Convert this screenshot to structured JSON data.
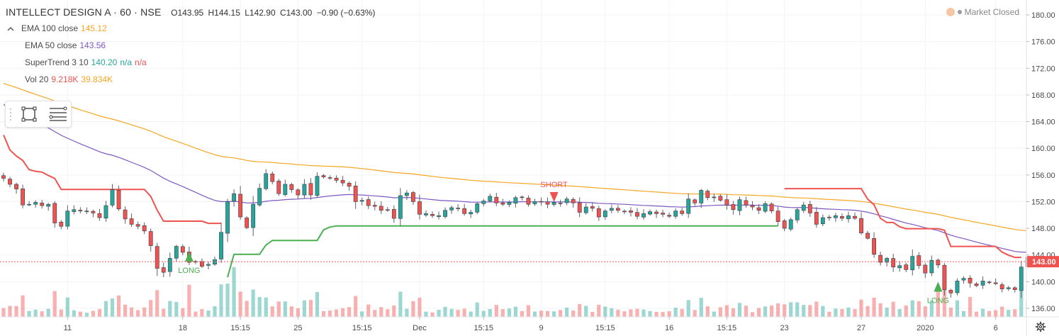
{
  "header": {
    "symbol": "INTELLECT DESIGN A · 60 · NSE",
    "open": "O143.95",
    "high": "H144.15",
    "low": "L142.90",
    "close": "C143.00",
    "change": "−0.90 (−0.63%)"
  },
  "indicators": [
    {
      "label": "EMA 100 close",
      "values": [
        "145.12"
      ],
      "colors": [
        "#f5a623"
      ]
    },
    {
      "label": "EMA 50 close",
      "values": [
        "143.56"
      ],
      "colors": [
        "#7e57c2"
      ]
    },
    {
      "label": "SuperTrend 3 10",
      "values": [
        "140.20",
        "n/a",
        "n/a"
      ],
      "colors": [
        "#26a69a",
        "#26a69a",
        "#ef5350"
      ]
    },
    {
      "label": "Vol 20",
      "values": [
        "9.218K",
        "39.834K"
      ],
      "colors": [
        "#ef5350",
        "#f5a623"
      ]
    }
  ],
  "market_status": "Market Closed",
  "icons": [
    "chevron-up-icon",
    "rectangle-tool-icon",
    "lines-tool-icon",
    "clock-icon",
    "gear-icon"
  ],
  "colors": {
    "up": "#26a69a",
    "down": "#ef5350",
    "ema100": "#f5a623",
    "ema50": "#7e57c2",
    "st_up": "#4caf50",
    "st_down": "#ef5350"
  },
  "chart_data": {
    "type": "candlestick",
    "y_axis": {
      "min": 136,
      "max": 180,
      "ticks": [
        "136.00",
        "140.00",
        "144.00",
        "148.00",
        "152.00",
        "156.00",
        "160.00",
        "164.00",
        "168.00",
        "172.00",
        "176.00",
        "180.00"
      ]
    },
    "x_ticks": [
      {
        "label": "11",
        "i": 10
      },
      {
        "label": "18",
        "i": 28
      },
      {
        "label": "15:15",
        "i": 37
      },
      {
        "label": "25",
        "i": 46
      },
      {
        "label": "15:15",
        "i": 56
      },
      {
        "label": "Dec",
        "i": 65
      },
      {
        "label": "15:15",
        "i": 75
      },
      {
        "label": "9",
        "i": 84
      },
      {
        "label": "15:15",
        "i": 94
      },
      {
        "label": "16",
        "i": 104
      },
      {
        "label": "15:15",
        "i": 113
      },
      {
        "label": "23",
        "i": 122
      },
      {
        "label": "27",
        "i": 134
      },
      {
        "label": "2020",
        "i": 144
      },
      {
        "label": "6",
        "i": 155
      }
    ],
    "last_price": "143.00",
    "signals": [
      {
        "label": "LONG",
        "i": 29,
        "type": "long",
        "price": 143.0
      },
      {
        "label": "SHORT",
        "i": 86,
        "type": "short",
        "price": 153.0
      },
      {
        "label": "LONG",
        "i": 146,
        "type": "long",
        "price": 138.5
      }
    ],
    "closes": [
      155.5,
      154.6,
      153.9,
      151.5,
      151.6,
      151.9,
      151.4,
      151.6,
      148.8,
      148.3,
      150.6,
      150.8,
      150.6,
      150.6,
      150.3,
      149.6,
      151.4,
      153.8,
      150.9,
      149.4,
      148.6,
      148.3,
      147.6,
      145.4,
      142.0,
      141.4,
      143.5,
      145.3,
      144.4,
      142.9,
      143.0,
      142.3,
      142.6,
      143.3,
      147.4,
      152.0,
      153.2,
      149.7,
      148.1,
      151.6,
      154.0,
      156.2,
      155.0,
      153.2,
      154.6,
      153.8,
      153.0,
      154.6,
      153.0,
      155.8,
      155.7,
      155.5,
      155.2,
      154.8,
      154.3,
      152.0,
      152.2,
      151.4,
      151.3,
      150.7,
      150.7,
      149.5,
      152.9,
      153.3,
      152.0,
      150.1,
      150.2,
      149.9,
      149.9,
      150.7,
      151.1,
      151.0,
      150.2,
      150.4,
      151.7,
      152.1,
      152.8,
      151.8,
      151.6,
      151.9,
      152.6,
      152.6,
      151.6,
      152.0,
      152.0,
      151.6,
      151.9,
      151.7,
      152.4,
      151.8,
      150.4,
      151.2,
      151.0,
      149.7,
      150.6,
      151.0,
      150.7,
      150.5,
      150.4,
      149.8,
      150.2,
      150.5,
      150.2,
      150.1,
      149.8,
      150.6,
      150.2,
      152.4,
      151.8,
      153.7,
      152.6,
      152.7,
      152.2,
      151.5,
      150.8,
      152.3,
      151.5,
      151.2,
      150.7,
      151.7,
      150.6,
      149.0,
      148.0,
      149.3,
      150.8,
      151.5,
      150.3,
      148.6,
      149.6,
      149.6,
      149.9,
      149.5,
      149.9,
      149.5,
      147.3,
      146.5,
      144.1,
      142.9,
      143.5,
      142.2,
      142.4,
      141.8,
      143.8,
      142.4,
      141.3,
      143.2,
      142.5,
      138.8,
      138.3,
      140.1,
      140.5,
      139.8,
      139.4,
      140.1,
      139.9,
      139.7,
      138.9,
      139.1,
      138.8,
      142.2,
      143.7,
      144.3,
      142.3,
      142.6,
      143.1,
      145.8,
      145.9,
      145.6,
      145.5,
      145.5,
      144.9,
      144.0,
      143.0
    ]
  }
}
